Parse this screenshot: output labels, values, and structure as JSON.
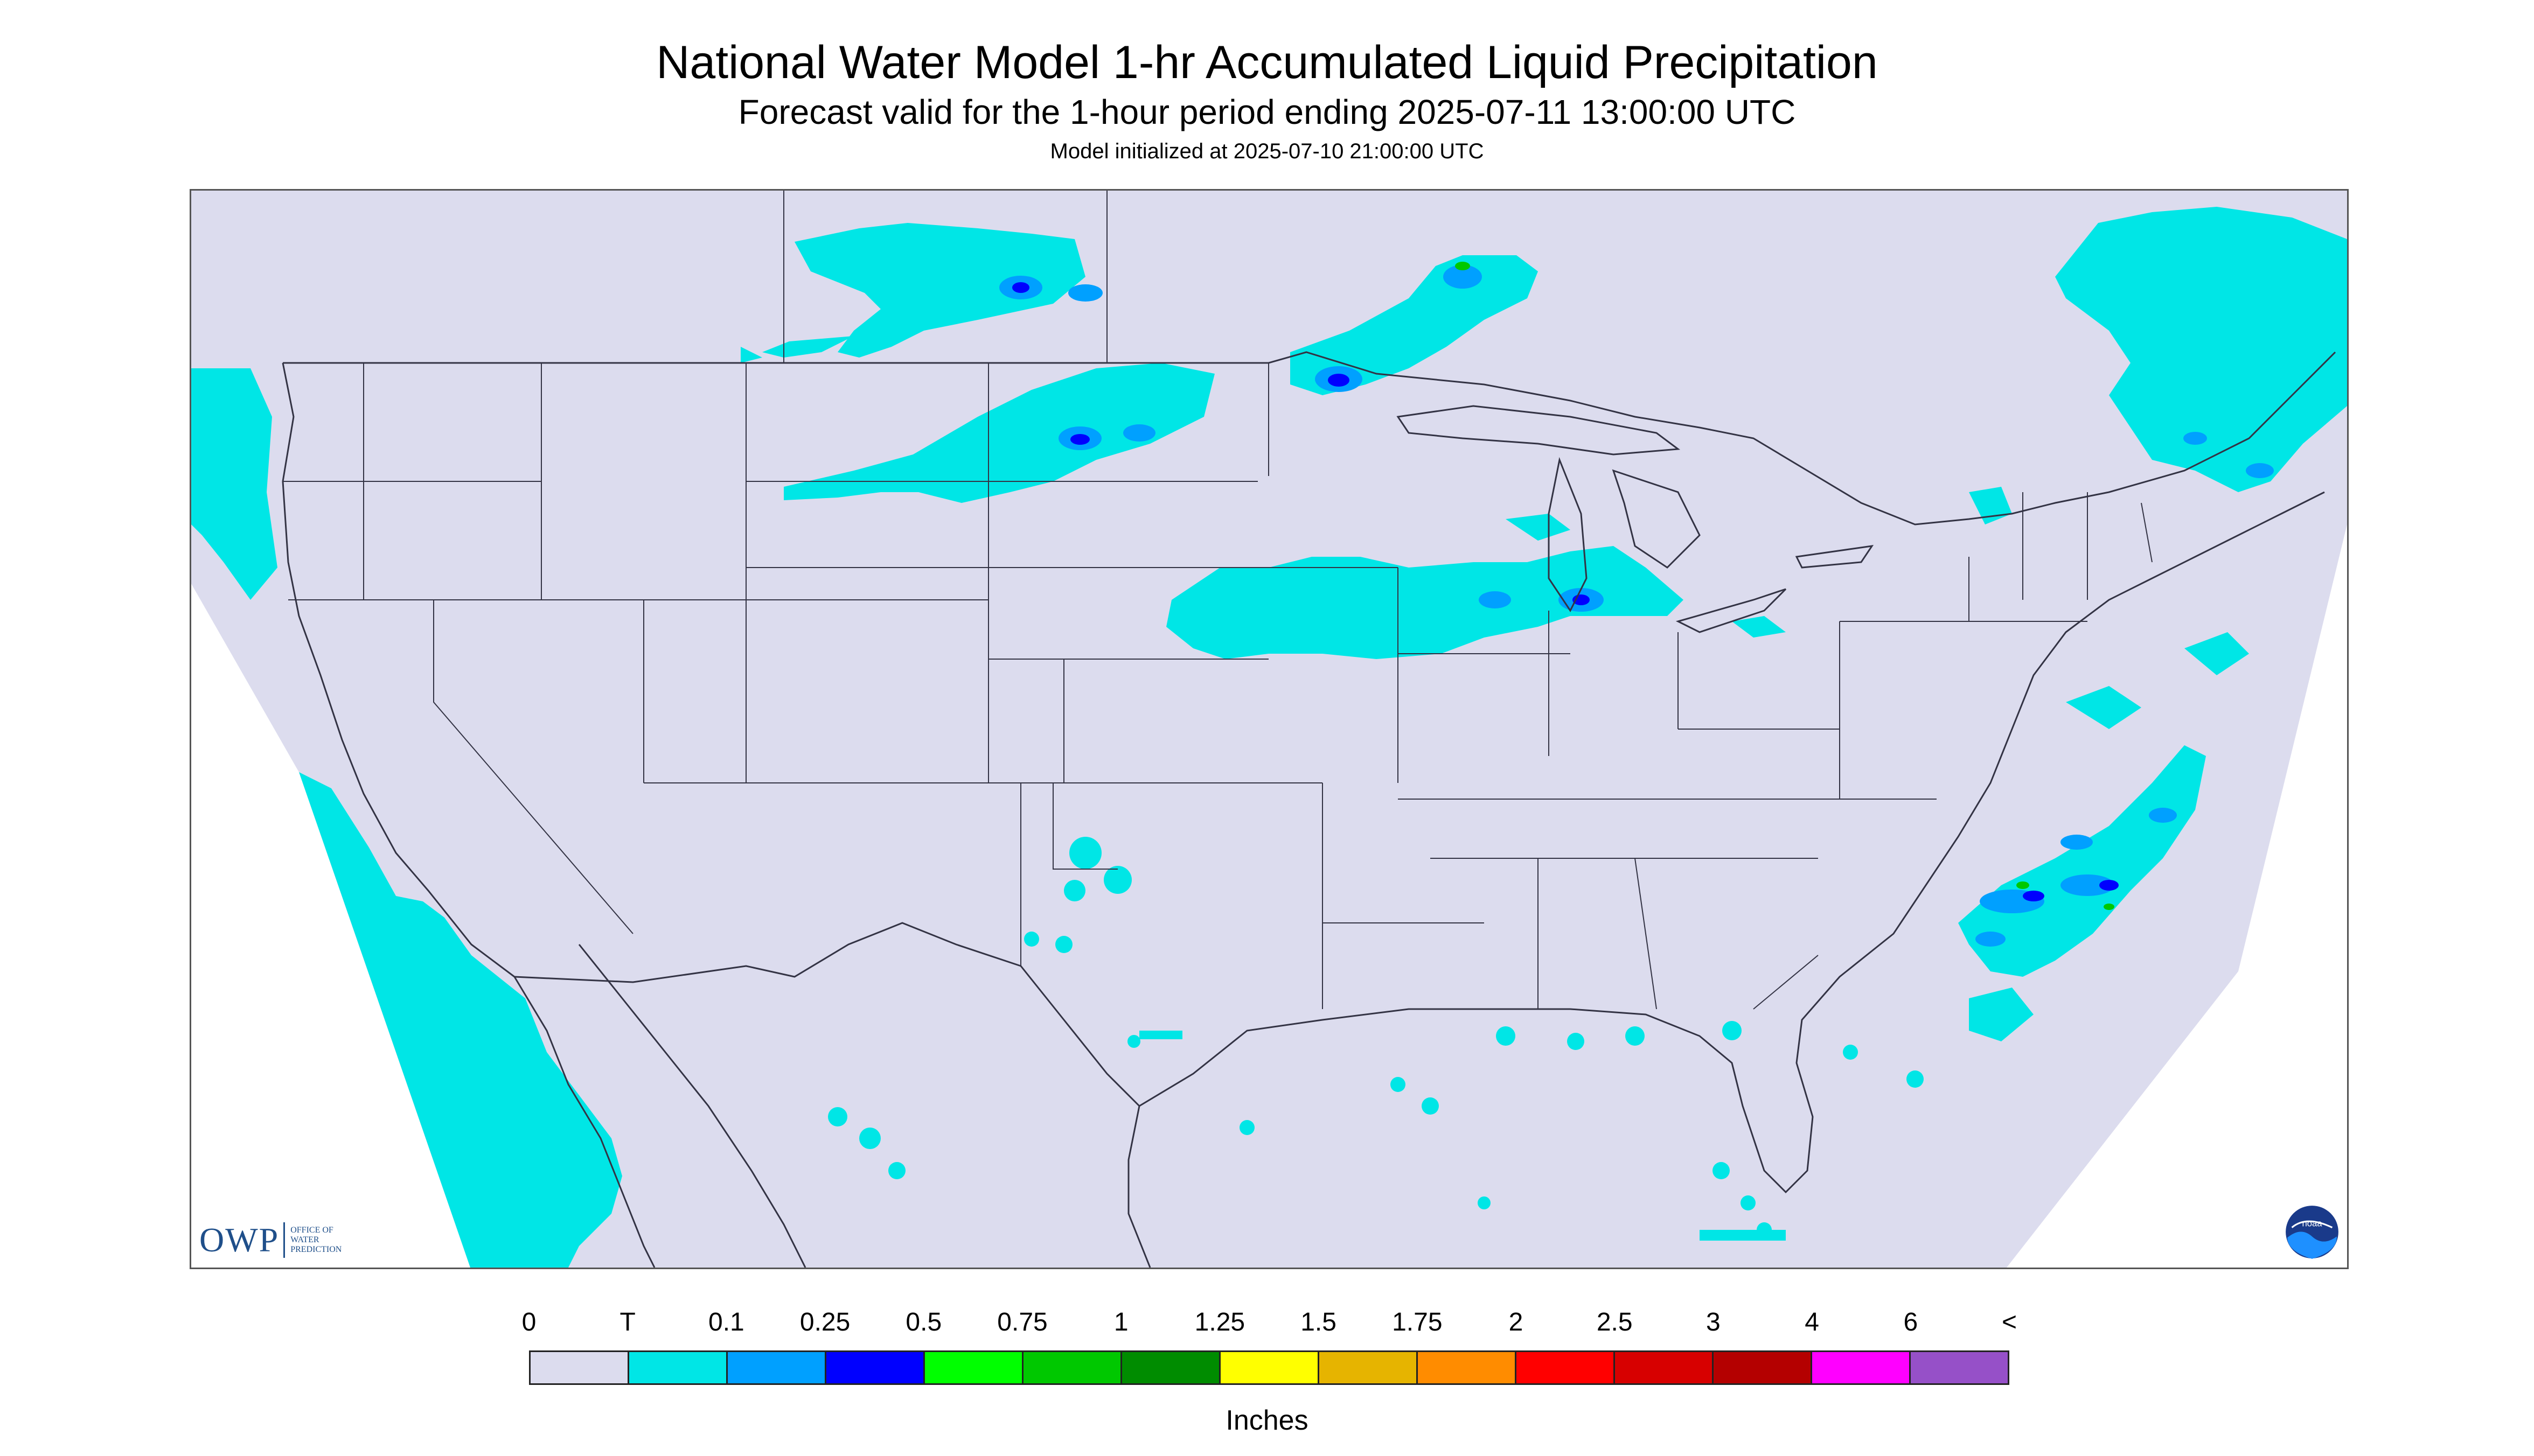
{
  "header": {
    "title": "National Water Model 1-hr Accumulated Liquid Precipitation",
    "subtitle": "Forecast valid for the 1-hour period ending 2025-07-11 13:00:00 UTC",
    "initialized": "Model initialized at 2025-07-10 21:00:00 UTC"
  },
  "map": {
    "background_color": "#dcdcee",
    "outside_domain_color": "#ffffff",
    "boundary_color": "#333344",
    "logos": {
      "owp": {
        "letters": "OWP",
        "line1": "OFFICE OF",
        "line2": "WATER",
        "line3": "PREDICTION"
      },
      "noaa": "noaa-logo"
    }
  },
  "legend": {
    "labels": [
      "0",
      "T",
      "0.1",
      "0.25",
      "0.5",
      "0.75",
      "1",
      "1.25",
      "1.5",
      "1.75",
      "2",
      "2.5",
      "3",
      "4",
      "6",
      "<"
    ],
    "colors": [
      "#dcdcee",
      "#00e6e6",
      "#00a0ff",
      "#0000ff",
      "#00ff00",
      "#00c800",
      "#008c00",
      "#ffff00",
      "#e6b400",
      "#ff8c00",
      "#ff0000",
      "#d70000",
      "#b40000",
      "#ff00ff",
      "#9650c8"
    ],
    "units": "Inches"
  }
}
